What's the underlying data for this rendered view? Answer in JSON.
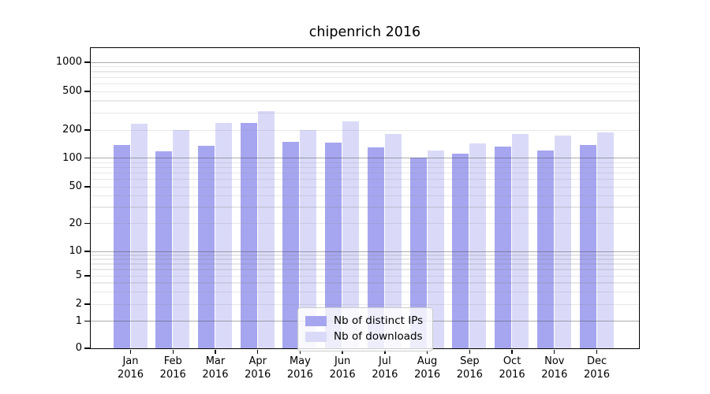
{
  "chart_data": {
    "type": "bar",
    "title": "chipenrich 2016",
    "categories": [
      "Jan",
      "Feb",
      "Mar",
      "Apr",
      "May",
      "Jun",
      "Jul",
      "Aug",
      "Sep",
      "Oct",
      "Nov",
      "Dec"
    ],
    "xtick_year": "2016",
    "series": [
      {
        "name": "Nb of distinct IPs",
        "color": "#a6a6f0",
        "values": [
          136,
          117,
          135,
          234,
          148,
          144,
          128,
          100,
          111,
          131,
          119,
          138
        ]
      },
      {
        "name": "Nb of downloads",
        "color": "#dadaf8",
        "values": [
          232,
          197,
          234,
          310,
          197,
          243,
          180,
          120,
          143,
          181,
          174,
          188
        ]
      }
    ],
    "yticks": [
      1000,
      500,
      200,
      100,
      50,
      20,
      10,
      5,
      2,
      1,
      0
    ],
    "yscale": "log-like with linear segment below 1",
    "ylim": [
      0,
      1400
    ],
    "grid": true,
    "legend_position": "bottom-center"
  }
}
